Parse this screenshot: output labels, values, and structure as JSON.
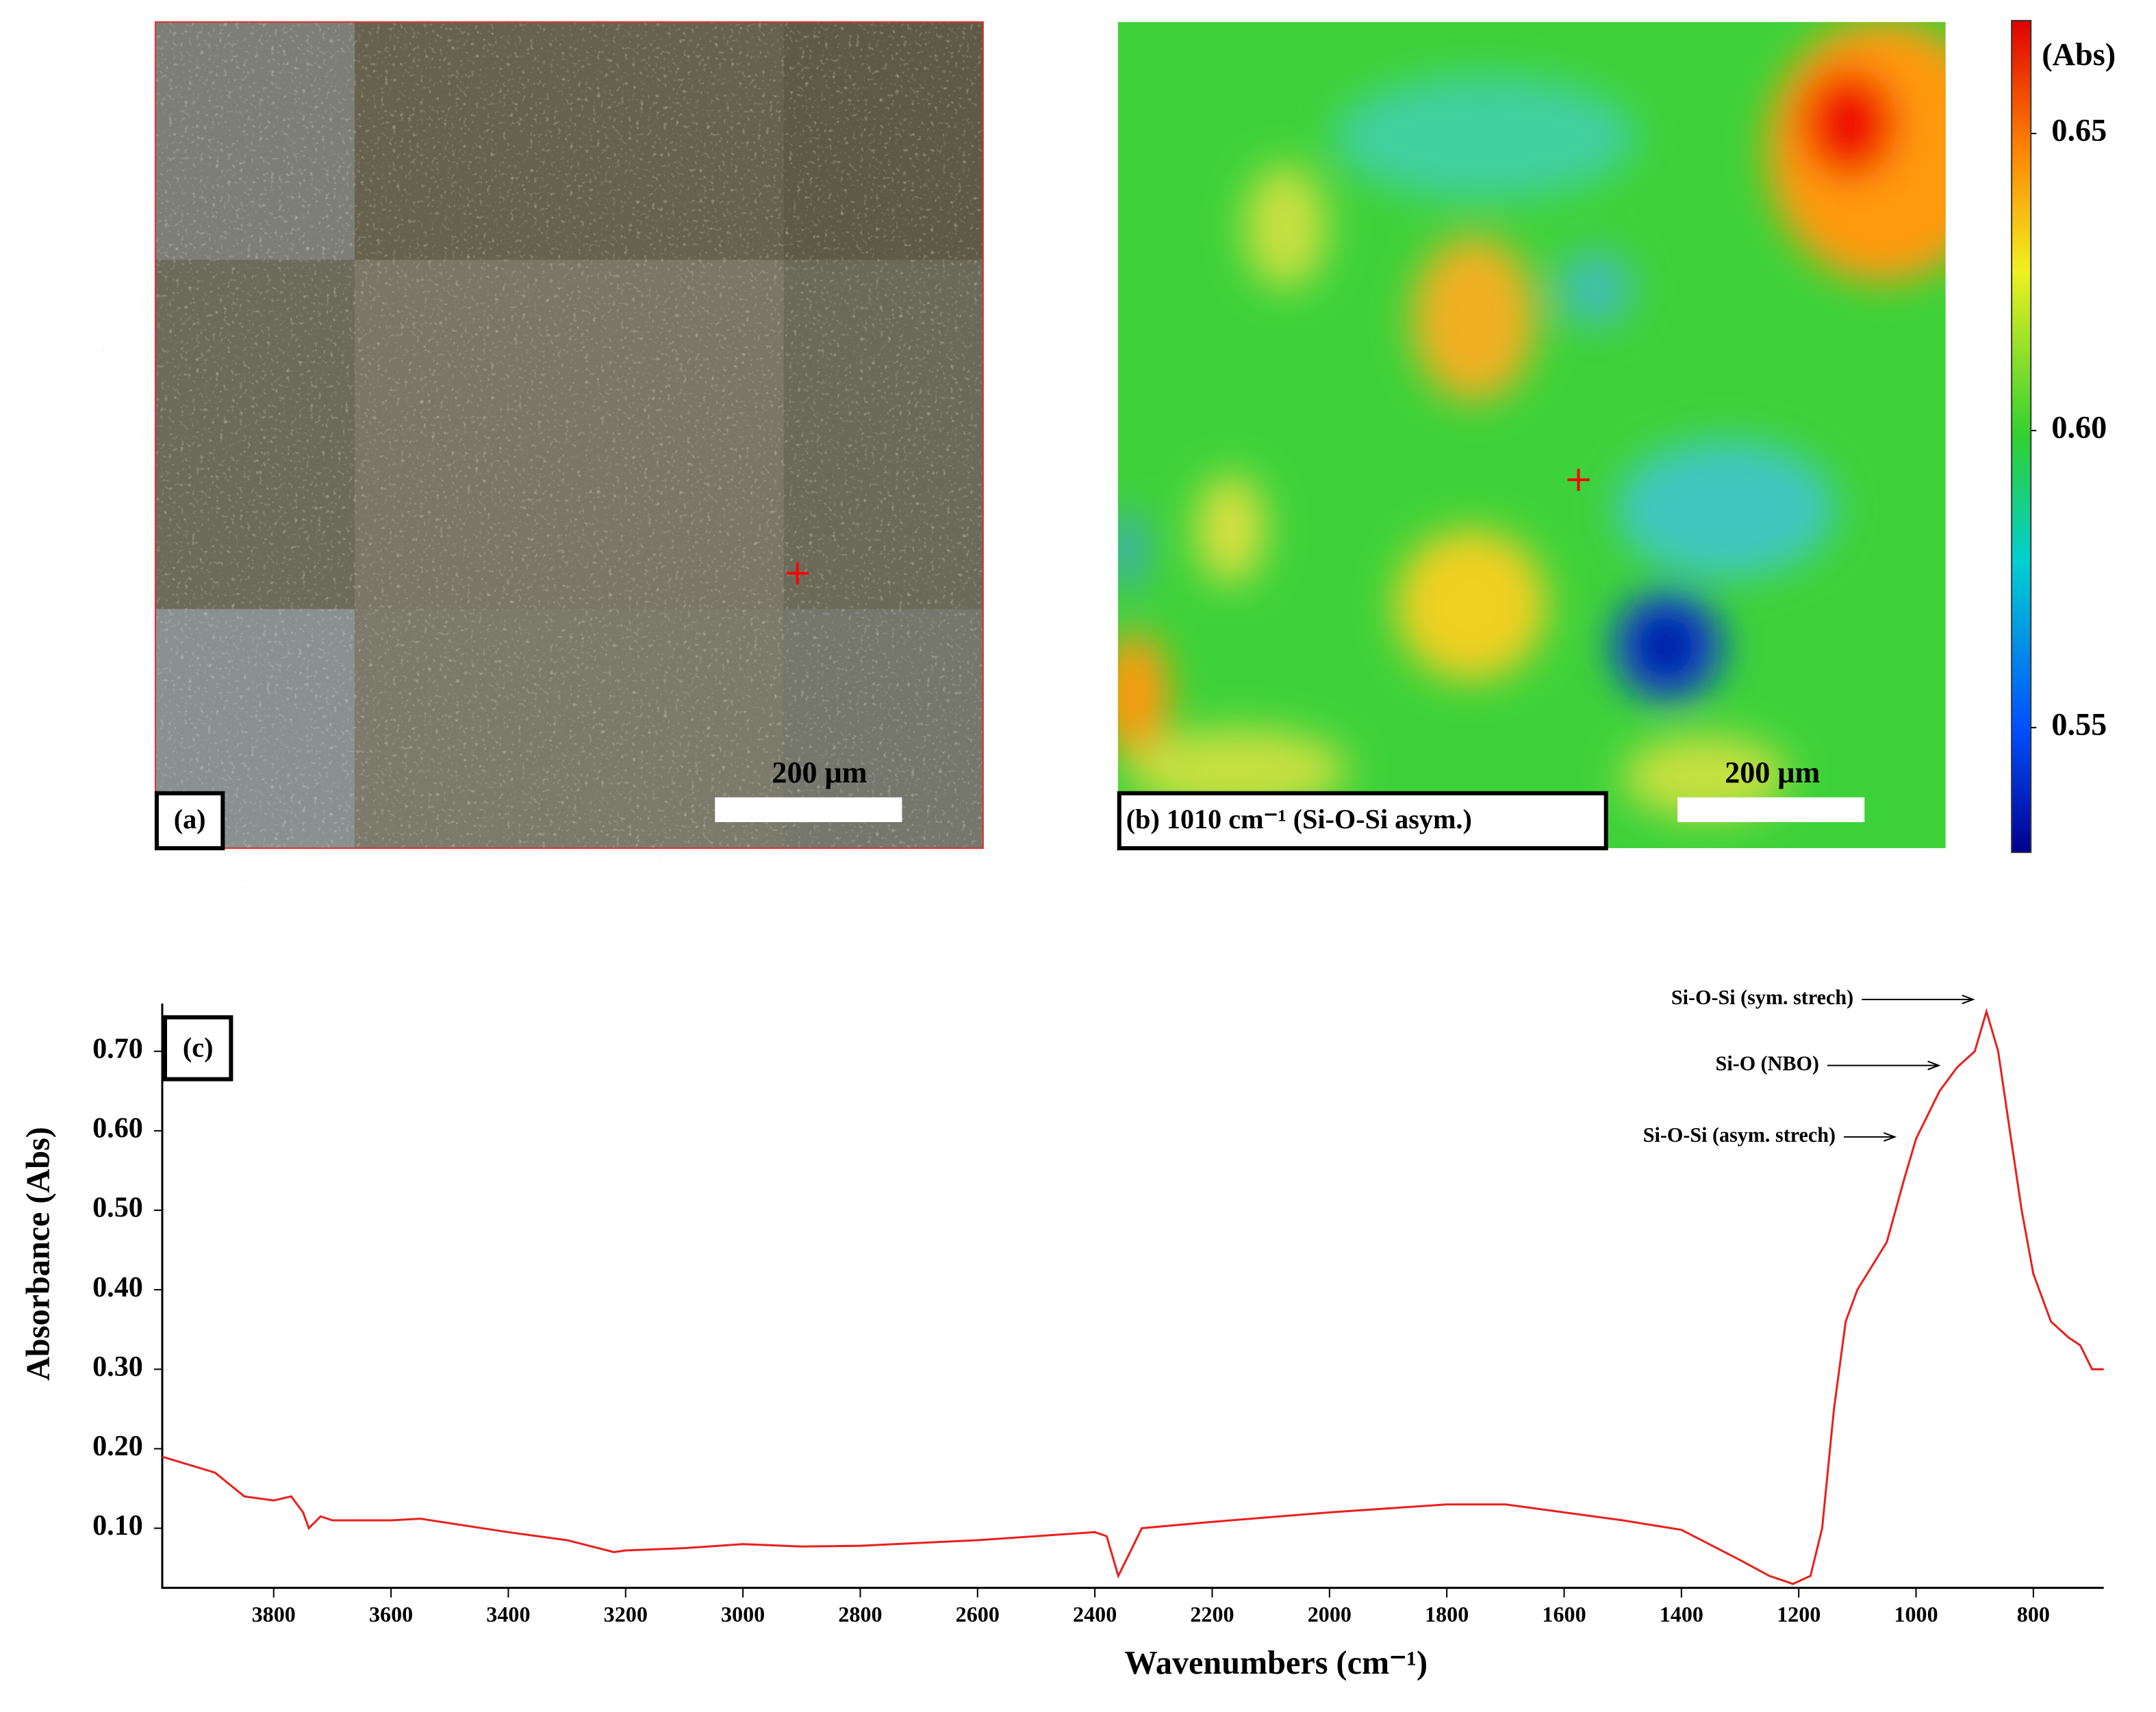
{
  "chart_data": [
    {
      "type": "image",
      "label": "(a)",
      "scale_bar": "200 μm"
    },
    {
      "type": "heatmap",
      "label": "(b) 1010 cm⁻¹ (Si-O-Si asym.)",
      "scale_bar": "200 μm",
      "colorbar_label": "(Abs)",
      "clim": [
        0.529,
        0.669
      ],
      "colorbar_ticks": [
        {
          "value": 0.55,
          "label": "0.55"
        },
        {
          "value": 0.6,
          "label": "0.60"
        },
        {
          "value": 0.65,
          "label": "0.65"
        }
      ]
    },
    {
      "type": "line",
      "label": "(c)",
      "xlabel": "Wavenumbers (cm⁻¹)",
      "ylabel": "Absorbance (Abs)",
      "color": "#e8211e",
      "xlim": [
        3990,
        680
      ],
      "ylim": [
        0.025,
        0.76
      ],
      "xticks": [
        3800,
        3600,
        3400,
        3200,
        3000,
        2800,
        2600,
        2400,
        2200,
        2000,
        1800,
        1600,
        1400,
        1200,
        1000,
        800
      ],
      "yticks": [
        {
          "value": 0.1,
          "label": "0.10"
        },
        {
          "value": 0.2,
          "label": "0.20"
        },
        {
          "value": 0.3,
          "label": "0.30"
        },
        {
          "value": 0.4,
          "label": "0.40"
        },
        {
          "value": 0.5,
          "label": "0.50"
        },
        {
          "value": 0.6,
          "label": "0.60"
        },
        {
          "value": 0.7,
          "label": "0.70"
        }
      ],
      "annotations": [
        "Si-O-Si (sym. strech)",
        "Si-O (NBO)",
        "Si-O-Si (asym. strech)"
      ],
      "x": [
        3990,
        3900,
        3850,
        3800,
        3770,
        3750,
        3740,
        3720,
        3700,
        3600,
        3550,
        3400,
        3300,
        3220,
        3200,
        3100,
        3000,
        2900,
        2800,
        2600,
        2400,
        2380,
        2360,
        2340,
        2320,
        2200,
        2000,
        1800,
        1700,
        1600,
        1500,
        1400,
        1300,
        1250,
        1210,
        1180,
        1160,
        1140,
        1120,
        1100,
        1050,
        1020,
        1000,
        960,
        930,
        900,
        880,
        860,
        840,
        820,
        800,
        770,
        740,
        720,
        700,
        680
      ],
      "values": [
        0.19,
        0.17,
        0.14,
        0.135,
        0.14,
        0.12,
        0.1,
        0.115,
        0.11,
        0.11,
        0.112,
        0.095,
        0.085,
        0.07,
        0.072,
        0.075,
        0.08,
        0.077,
        0.078,
        0.085,
        0.095,
        0.09,
        0.04,
        0.07,
        0.1,
        0.108,
        0.12,
        0.13,
        0.13,
        0.12,
        0.11,
        0.098,
        0.06,
        0.04,
        0.03,
        0.04,
        0.1,
        0.25,
        0.36,
        0.4,
        0.46,
        0.54,
        0.59,
        0.65,
        0.68,
        0.7,
        0.75,
        0.7,
        0.6,
        0.5,
        0.42,
        0.36,
        0.34,
        0.33,
        0.3,
        0.3
      ]
    }
  ]
}
